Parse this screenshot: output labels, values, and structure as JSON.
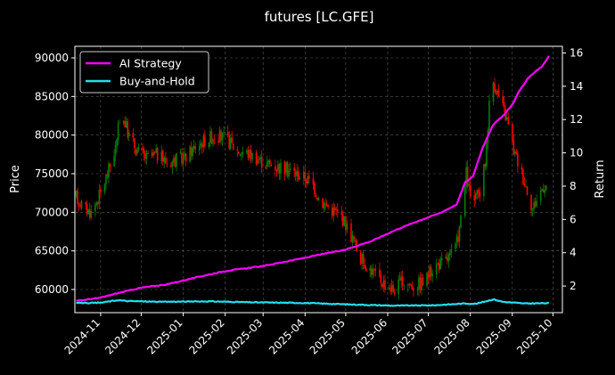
{
  "chart_data": {
    "type": "line",
    "title": "futures [LC.GFE]",
    "ylabel": "Price",
    "y2label": "Return",
    "ylim": [
      57000,
      91500
    ],
    "y2lim": [
      0.4,
      16.4
    ],
    "yticks": [
      60000,
      65000,
      70000,
      75000,
      80000,
      85000,
      90000
    ],
    "y2ticks": [
      2,
      4,
      6,
      8,
      10,
      12,
      14,
      16
    ],
    "xticks": [
      "2024-11",
      "2024-12",
      "2025-01",
      "2025-02",
      "2025-03",
      "2025-04",
      "2025-05",
      "2025-06",
      "2025-07",
      "2025-08",
      "2025-09",
      "2025-10"
    ],
    "xlim": [
      "2024-10-13",
      "2025-10-08"
    ],
    "grid": true,
    "legend_position": "top-left",
    "candle_colors": {
      "up": "#008000",
      "down": "#ff0000"
    },
    "price_anchors": [
      [
        "2024-10-14",
        72000
      ],
      [
        "2024-10-20",
        70500
      ],
      [
        "2024-10-25",
        70000
      ],
      [
        "2024-11-01",
        72500
      ],
      [
        "2024-11-08",
        76000
      ],
      [
        "2024-11-13",
        79000
      ],
      [
        "2024-11-16",
        84000
      ],
      [
        "2024-11-18",
        82000
      ],
      [
        "2024-11-22",
        80000
      ],
      [
        "2024-11-28",
        78000
      ],
      [
        "2024-12-05",
        77000
      ],
      [
        "2024-12-12",
        77500
      ],
      [
        "2024-12-20",
        76500
      ],
      [
        "2025-01-02",
        77000
      ],
      [
        "2025-01-10",
        78500
      ],
      [
        "2025-01-18",
        79500
      ],
      [
        "2025-01-25",
        80000
      ],
      [
        "2025-02-02",
        79500
      ],
      [
        "2025-02-10",
        78000
      ],
      [
        "2025-02-20",
        77500
      ],
      [
        "2025-03-01",
        76500
      ],
      [
        "2025-03-10",
        76000
      ],
      [
        "2025-03-20",
        75500
      ],
      [
        "2025-04-01",
        74500
      ],
      [
        "2025-04-07",
        73500
      ],
      [
        "2025-04-12",
        71500
      ],
      [
        "2025-04-20",
        70500
      ],
      [
        "2025-04-28",
        69500
      ],
      [
        "2025-05-05",
        67000
      ],
      [
        "2025-05-12",
        64000
      ],
      [
        "2025-05-20",
        62500
      ],
      [
        "2025-05-28",
        61000
      ],
      [
        "2025-06-05",
        60000
      ],
      [
        "2025-06-12",
        61000
      ],
      [
        "2025-06-20",
        60500
      ],
      [
        "2025-06-28",
        61000
      ],
      [
        "2025-07-05",
        63000
      ],
      [
        "2025-07-12",
        63500
      ],
      [
        "2025-07-18",
        64500
      ],
      [
        "2025-07-22",
        66000
      ],
      [
        "2025-07-26",
        70000
      ],
      [
        "2025-07-29",
        75000
      ],
      [
        "2025-08-02",
        71000
      ],
      [
        "2025-08-08",
        72500
      ],
      [
        "2025-08-12",
        76500
      ],
      [
        "2025-08-15",
        84000
      ],
      [
        "2025-08-18",
        87000
      ],
      [
        "2025-08-22",
        85000
      ],
      [
        "2025-08-28",
        82000
      ],
      [
        "2025-09-02",
        78000
      ],
      [
        "2025-09-08",
        75000
      ],
      [
        "2025-09-12",
        73000
      ],
      [
        "2025-09-16",
        70500
      ],
      [
        "2025-09-20",
        72000
      ],
      [
        "2025-09-24",
        73500
      ],
      [
        "2025-09-28",
        73500
      ]
    ],
    "series": [
      {
        "name": "AI Strategy",
        "color": "#ff00ff",
        "axis": "right",
        "points": [
          [
            "2024-10-14",
            1.1
          ],
          [
            "2024-11-01",
            1.3
          ],
          [
            "2024-11-15",
            1.6
          ],
          [
            "2024-12-01",
            1.9
          ],
          [
            "2024-12-20",
            2.1
          ],
          [
            "2025-01-15",
            2.6
          ],
          [
            "2025-02-01",
            2.9
          ],
          [
            "2025-03-01",
            3.2
          ],
          [
            "2025-04-01",
            3.7
          ],
          [
            "2025-05-01",
            4.2
          ],
          [
            "2025-05-20",
            4.7
          ],
          [
            "2025-06-05",
            5.3
          ],
          [
            "2025-06-20",
            5.8
          ],
          [
            "2025-07-10",
            6.4
          ],
          [
            "2025-07-22",
            6.9
          ],
          [
            "2025-07-28",
            8.2
          ],
          [
            "2025-08-03",
            8.6
          ],
          [
            "2025-08-10",
            10.3
          ],
          [
            "2025-08-18",
            11.7
          ],
          [
            "2025-08-26",
            12.3
          ],
          [
            "2025-09-01",
            12.9
          ],
          [
            "2025-09-06",
            13.7
          ],
          [
            "2025-09-12",
            14.4
          ],
          [
            "2025-09-18",
            14.9
          ],
          [
            "2025-09-23",
            15.2
          ],
          [
            "2025-09-28",
            15.8
          ]
        ]
      },
      {
        "name": "Buy-and-Hold",
        "color": "#22e0f0",
        "axis": "right",
        "points": [
          [
            "2024-10-14",
            1.0
          ],
          [
            "2024-10-20",
            0.98
          ],
          [
            "2024-11-01",
            1.0
          ],
          [
            "2024-11-14",
            1.15
          ],
          [
            "2024-11-20",
            1.1
          ],
          [
            "2024-12-15",
            1.05
          ],
          [
            "2025-01-20",
            1.08
          ],
          [
            "2025-02-20",
            1.02
          ],
          [
            "2025-04-01",
            0.98
          ],
          [
            "2025-05-01",
            0.9
          ],
          [
            "2025-06-05",
            0.82
          ],
          [
            "2025-07-05",
            0.84
          ],
          [
            "2025-07-28",
            0.95
          ],
          [
            "2025-08-05",
            0.93
          ],
          [
            "2025-08-18",
            1.2
          ],
          [
            "2025-08-25",
            1.05
          ],
          [
            "2025-09-10",
            0.95
          ],
          [
            "2025-09-28",
            0.97
          ]
        ]
      }
    ]
  }
}
